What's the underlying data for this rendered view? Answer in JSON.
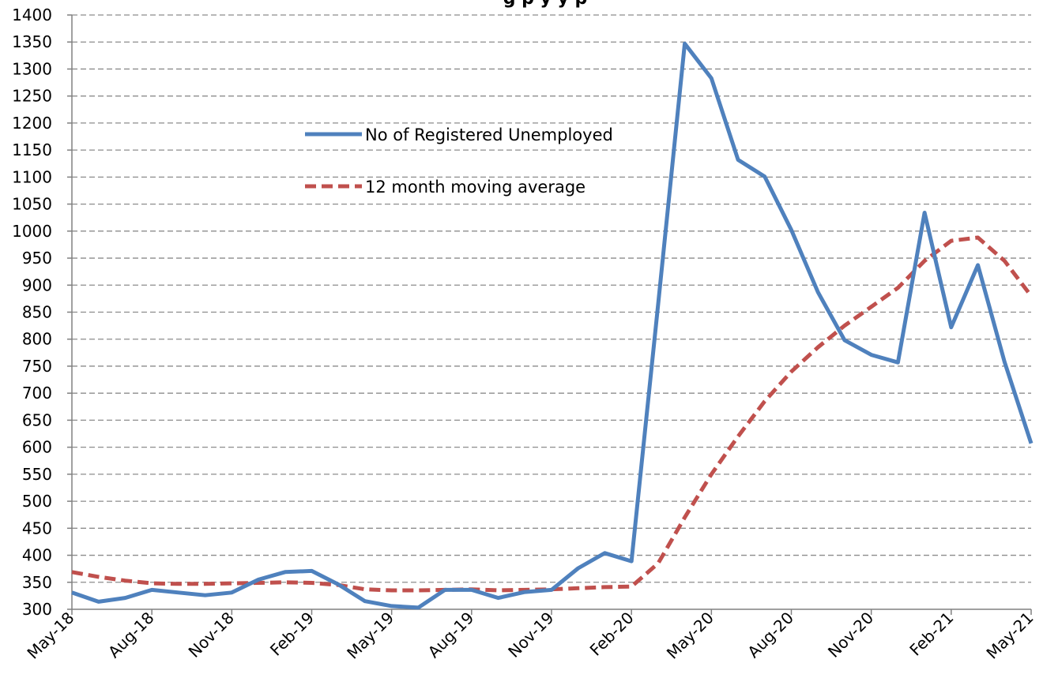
{
  "chart_data": {
    "type": "line",
    "title": "",
    "xlabel": "",
    "ylabel": "",
    "ylim": [
      300,
      1400
    ],
    "ytick_step": 50,
    "x": [
      "May-18",
      "Jun-18",
      "Jul-18",
      "Aug-18",
      "Sep-18",
      "Oct-18",
      "Nov-18",
      "Dec-18",
      "Jan-19",
      "Feb-19",
      "Mar-19",
      "Apr-19",
      "May-19",
      "Jun-19",
      "Jul-19",
      "Aug-19",
      "Sep-19",
      "Oct-19",
      "Nov-19",
      "Dec-19",
      "Jan-20",
      "Feb-20",
      "Mar-20",
      "Apr-20",
      "May-20",
      "Jun-20",
      "Jul-20",
      "Aug-20",
      "Sep-20",
      "Oct-20",
      "Nov-20",
      "Dec-20",
      "Jan-21",
      "Feb-21",
      "Mar-21",
      "Apr-21",
      "May-21"
    ],
    "x_tick_labels": [
      "May-18",
      "Aug-18",
      "Nov-18",
      "Feb-19",
      "May-19",
      "Aug-19",
      "Nov-19",
      "Feb-20",
      "May-20",
      "Aug-20",
      "Nov-20",
      "Feb-21",
      "May-21"
    ],
    "legend_position": "upper-center",
    "grid": true,
    "series": [
      {
        "name": "No of Registered Unemployed",
        "color": "#4f81bd",
        "style": "solid",
        "values": [
          331,
          314,
          321,
          336,
          331,
          326,
          331,
          355,
          369,
          371,
          346,
          315,
          306,
          303,
          336,
          336,
          321,
          332,
          336,
          376,
          404,
          389,
          864,
          1347,
          1283,
          1132,
          1101,
          1002,
          887,
          798,
          771,
          757,
          1034,
          822,
          937,
          758,
          607
        ]
      },
      {
        "name": "12 month moving average",
        "color": "#c0504d",
        "style": "dashed",
        "values": [
          369,
          360,
          353,
          348,
          347,
          347,
          348,
          349,
          350,
          349,
          345,
          337,
          335,
          335,
          336,
          337,
          335,
          336,
          337,
          339,
          341,
          342,
          385,
          470,
          550,
          620,
          685,
          740,
          785,
          825,
          860,
          895,
          945,
          982,
          988,
          945,
          880
        ]
      }
    ]
  },
  "title_visible_fragment": "g         p y     y       p",
  "legend": {
    "items": [
      {
        "label": "No of Registered Unemployed"
      },
      {
        "label": "12 month moving average"
      }
    ]
  }
}
